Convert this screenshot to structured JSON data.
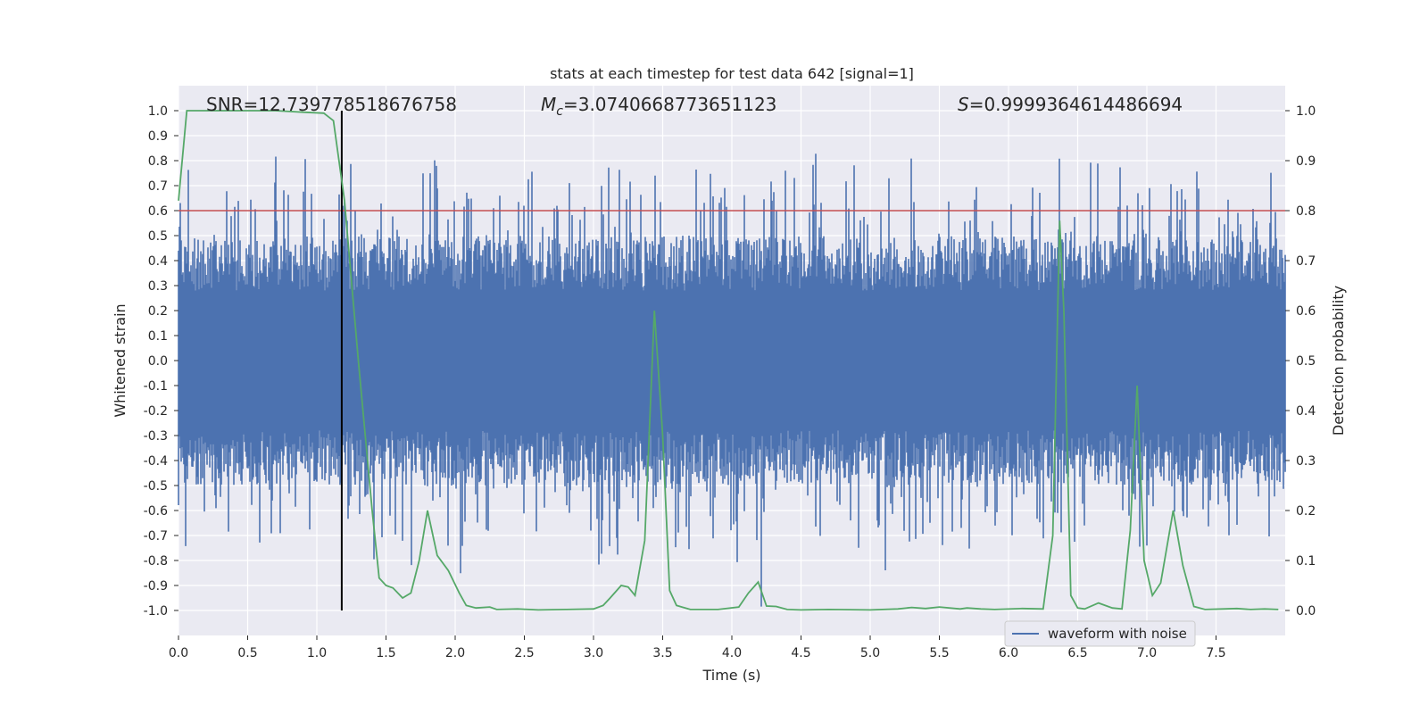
{
  "chart_data": {
    "type": "line",
    "title": "stats at each timestep for test data 642 [signal=1]",
    "xlabel": "Time (s)",
    "ylabel": "Whitened strain",
    "y2label": "Detection probability",
    "xlim": [
      0,
      8.0
    ],
    "ylim": [
      -1.1,
      1.1
    ],
    "y2lim": [
      -0.05,
      1.05
    ],
    "x_ticks": [
      "0.0",
      "0.5",
      "1.0",
      "1.5",
      "2.0",
      "2.5",
      "3.0",
      "3.5",
      "4.0",
      "4.5",
      "5.0",
      "5.5",
      "6.0",
      "6.5",
      "7.0",
      "7.5"
    ],
    "y_ticks": [
      "1.0",
      "0.9",
      "0.8",
      "0.7",
      "0.6",
      "0.5",
      "0.4",
      "0.3",
      "0.2",
      "0.1",
      "0.0",
      "-0.1",
      "-0.2",
      "-0.3",
      "-0.4",
      "-0.5",
      "-0.6",
      "-0.7",
      "-0.8",
      "-0.9",
      "-1.0"
    ],
    "y2_ticks": [
      "1.0",
      "0.9",
      "0.8",
      "0.7",
      "0.6",
      "0.5",
      "0.4",
      "0.3",
      "0.2",
      "0.1",
      "0.0"
    ],
    "grid": true,
    "legend": {
      "placement": "lower-right",
      "entries": [
        "waveform with noise"
      ]
    },
    "annotations": {
      "snr": "SNR=12.739778518676758",
      "mc_symbol": "M",
      "mc_sub": "c",
      "mc_value": "=3.0740668773651123",
      "s_symbol": "S",
      "s_value": "=0.9999364614486694"
    },
    "threshold_line": {
      "y2": 0.8,
      "color": "#c44e52"
    },
    "marker_line": {
      "x": 1.18,
      "color": "#000000"
    },
    "series": [
      {
        "name": "waveform with noise",
        "axis": "left",
        "color": "#4c72b0",
        "style": "noise",
        "approx_envelope": [
          -1.0,
          1.0
        ]
      },
      {
        "axis": "right",
        "color": "#55a868",
        "x": [
          0.0,
          0.06,
          0.1,
          0.3,
          0.5,
          0.7,
          0.9,
          1.05,
          1.12,
          1.2,
          1.3,
          1.4,
          1.45,
          1.5,
          1.55,
          1.62,
          1.68,
          1.74,
          1.8,
          1.87,
          1.95,
          2.03,
          2.08,
          2.15,
          2.25,
          2.3,
          2.45,
          2.6,
          2.8,
          3.0,
          3.07,
          3.12,
          3.2,
          3.25,
          3.3,
          3.37,
          3.44,
          3.5,
          3.55,
          3.6,
          3.7,
          3.9,
          4.05,
          4.12,
          4.19,
          4.25,
          4.32,
          4.4,
          4.5,
          4.7,
          5.0,
          5.2,
          5.3,
          5.4,
          5.5,
          5.65,
          5.7,
          5.8,
          5.9,
          6.1,
          6.25,
          6.32,
          6.37,
          6.4,
          6.45,
          6.5,
          6.55,
          6.65,
          6.75,
          6.82,
          6.88,
          6.93,
          6.98,
          7.04,
          7.1,
          7.19,
          7.26,
          7.34,
          7.42,
          7.55,
          7.65,
          7.75,
          7.85,
          7.95
        ],
        "values": [
          0.82,
          1.0,
          1.0,
          1.0,
          1.0,
          1.0,
          0.997,
          0.995,
          0.98,
          0.82,
          0.5,
          0.2,
          0.065,
          0.05,
          0.045,
          0.025,
          0.035,
          0.1,
          0.2,
          0.11,
          0.08,
          0.035,
          0.01,
          0.005,
          0.007,
          0.002,
          0.003,
          0.001,
          0.002,
          0.003,
          0.01,
          0.025,
          0.05,
          0.047,
          0.03,
          0.14,
          0.6,
          0.35,
          0.04,
          0.01,
          0.002,
          0.002,
          0.007,
          0.035,
          0.057,
          0.009,
          0.008,
          0.002,
          0.001,
          0.002,
          0.001,
          0.003,
          0.006,
          0.004,
          0.007,
          0.003,
          0.005,
          0.003,
          0.002,
          0.004,
          0.003,
          0.15,
          0.78,
          0.6,
          0.03,
          0.005,
          0.003,
          0.015,
          0.005,
          0.003,
          0.16,
          0.45,
          0.1,
          0.03,
          0.055,
          0.2,
          0.09,
          0.008,
          0.002,
          0.003,
          0.004,
          0.002,
          0.003,
          0.002
        ]
      }
    ]
  }
}
